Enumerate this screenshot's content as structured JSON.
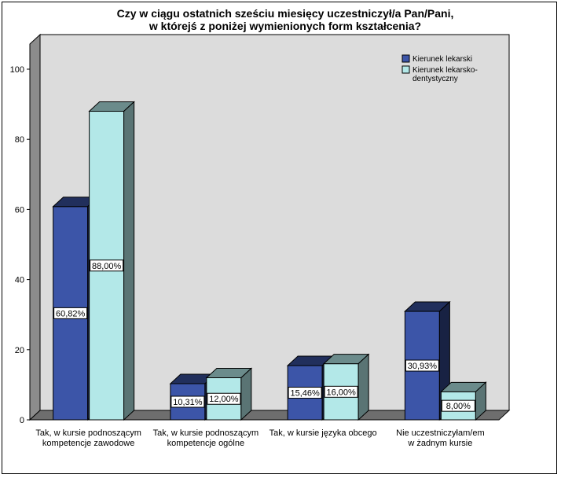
{
  "chart_data": {
    "type": "bar",
    "title_lines": [
      "Czy w ciągu ostatnich sześciu miesięcy uczestniczył/a Pan/Pani,",
      "w którejś z poniżej wymienionych form kształcenia?"
    ],
    "categories": [
      [
        "Tak, w kursie podnoszącym",
        "kompetencje zawodowe"
      ],
      [
        "Tak, w kursie podnoszącym",
        "kompetencje ogólne"
      ],
      [
        "Tak, w kursie języka obcego"
      ],
      [
        "Nie uczestniczyłam/em",
        "w żadnym kursie"
      ]
    ],
    "series": [
      {
        "name": "Kierunek lekarski",
        "color": "#3c55a8",
        "values": [
          60.82,
          10.31,
          15.46,
          30.93
        ],
        "labels": [
          "60,82%",
          "10,31%",
          "15,46%",
          "30,93%"
        ]
      },
      {
        "name_lines": [
          "Kierunek lekarsko-",
          "dentystyczny"
        ],
        "color": "#b3e8e8",
        "values": [
          88.0,
          12.0,
          16.0,
          8.0
        ],
        "labels": [
          "88,00%",
          "12,00%",
          "16,00%",
          "8,00%"
        ]
      }
    ],
    "ylim": [
      0,
      100
    ],
    "yticks": [
      0,
      20,
      40,
      60,
      80,
      100
    ],
    "grid": false,
    "legend_position": "top-right",
    "plot_background": "#dcdcdc"
  }
}
